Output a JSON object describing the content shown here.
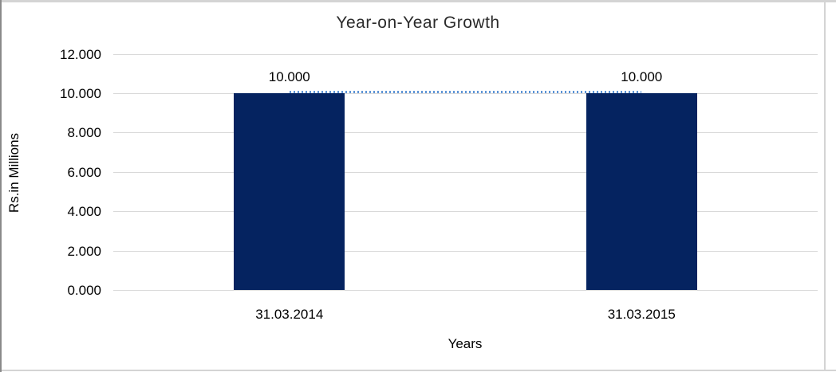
{
  "chart_data": {
    "type": "bar",
    "title": "Year-on-Year Growth",
    "xlabel": "Years",
    "ylabel": "Rs.in Millions",
    "categories": [
      "31.03.2014",
      "31.03.2015"
    ],
    "values": [
      10000,
      10000
    ],
    "value_labels": [
      "10.000",
      "10.000"
    ],
    "y_tick_values": [
      0,
      2000,
      4000,
      6000,
      8000,
      10000,
      12000
    ],
    "y_tick_labels": [
      "0.000",
      "2.000",
      "4.000",
      "6.000",
      "8.000",
      "10.000",
      "12.000"
    ],
    "ylim": [
      0,
      12000
    ],
    "grid": "horizontal",
    "legend": "none",
    "connector_line": {
      "style": "dotted",
      "from_category": 0,
      "to_category": 1,
      "at_value": 10000
    },
    "colors": {
      "bar": "#052360",
      "connector": "#5b93d5",
      "gridline": "#d9d9d9",
      "text": "#000000",
      "frame": "#d4d4d4"
    }
  }
}
